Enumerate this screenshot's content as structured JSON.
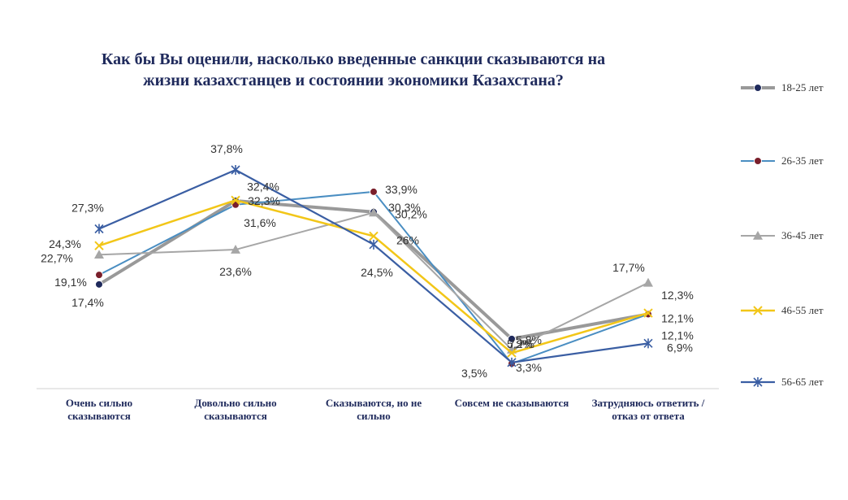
{
  "chart_data": {
    "type": "line",
    "title": "Как бы Вы оценили, насколько введенные санкции сказываются на жизни казахстанцев и состоянии экономики Казахстана?",
    "title_lines": [
      "Как бы Вы оценили, насколько введенные санкции сказываются на",
      "жизни казахстанцев и состоянии экономики Казахстана?"
    ],
    "categories": [
      [
        "Очень сильно",
        "сказываются"
      ],
      [
        "Довольно сильно",
        "сказываются"
      ],
      [
        "Сказываются, но не",
        "сильно"
      ],
      [
        "Совсем не сказываются"
      ],
      [
        "Затрудняюсь  ответить /",
        "отказ от ответа"
      ]
    ],
    "ylim": [
      0,
      42
    ],
    "legend_position": "right",
    "series": [
      {
        "name": "18-25 лет",
        "color": "#999999",
        "marker": "circle",
        "marker_color": "#1f2a5c",
        "values": [
          17.4,
          32.3,
          30.3,
          7.7,
          12.1
        ],
        "labels": [
          "17,4%",
          "32,3%",
          "30,3%",
          "7,7%",
          "12,1%"
        ]
      },
      {
        "name": "26-35 лет",
        "color": "#4a8ec2",
        "marker": "circle",
        "marker_color": "#7a1f2b",
        "values": [
          19.1,
          31.6,
          33.9,
          3.3,
          12.1
        ],
        "labels": [
          "19,1%",
          "31,6%",
          "33,9%",
          "3,3%",
          "12,1%"
        ]
      },
      {
        "name": "36-45 лет",
        "color": "#a6a6a6",
        "marker": "triangle",
        "marker_color": "#a6a6a6",
        "values": [
          22.7,
          23.6,
          30.2,
          5.8,
          17.7
        ],
        "labels": [
          "22,7%",
          "23,6%",
          "30,2%",
          "5,8%",
          "17,7%"
        ]
      },
      {
        "name": "46-55 лет",
        "color": "#f2c618",
        "marker": "x",
        "marker_color": "#f2c618",
        "values": [
          24.3,
          32.4,
          26,
          5.2,
          12.3
        ],
        "labels": [
          "24,3%",
          "32,4%",
          "26%",
          "5,2%",
          "12,3%"
        ]
      },
      {
        "name": "56-65 лет",
        "color": "#3a5ea3",
        "marker": "star",
        "marker_color": "#3a5ea3",
        "values": [
          27.3,
          37.8,
          24.5,
          3.5,
          6.9
        ],
        "labels": [
          "27,3%",
          "37,8%",
          "24,5%",
          "3,5%",
          "6,9%"
        ]
      }
    ]
  }
}
